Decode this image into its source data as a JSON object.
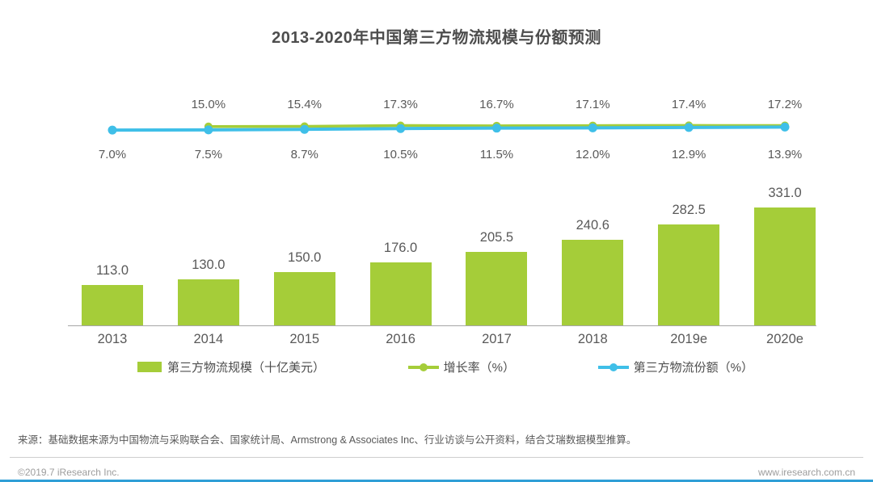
{
  "title": "2013-2020年中国第三方物流规模与份额预测",
  "colors": {
    "bar_green": "#a5cd39",
    "line_green": "#a5cd39",
    "line_blue": "#3fbfe8",
    "accent_bottom_bar": "#2f9fd6",
    "title_text": "#4d4d4d",
    "label_text": "#595959",
    "axis_gray": "#a6a6a6"
  },
  "chart_data": {
    "type": "bar",
    "title": "2013-2020年中国第三方物流规模与份额预测",
    "categories": [
      "2013",
      "2014",
      "2015",
      "2016",
      "2017",
      "2018",
      "2019e",
      "2020e"
    ],
    "series": [
      {
        "name": "第三方物流规模（十亿美元）",
        "type": "bar",
        "color": "#a5cd39",
        "values": [
          113.0,
          130.0,
          150.0,
          176.0,
          205.5,
          240.6,
          282.5,
          331.0
        ]
      },
      {
        "name": "增长率（%）",
        "type": "line",
        "color": "#a5cd39",
        "values": [
          null,
          15.0,
          15.4,
          17.3,
          16.7,
          17.1,
          17.4,
          17.2
        ]
      },
      {
        "name": "第三方物流份额（%）",
        "type": "line",
        "color": "#3fbfe8",
        "values": [
          7.0,
          7.5,
          8.7,
          10.5,
          11.5,
          12.0,
          12.9,
          13.9
        ]
      }
    ],
    "ylabel": "",
    "xlabel": "",
    "grid": false,
    "legend_position": "bottom",
    "bar_axis_range": [
      0,
      331
    ],
    "percent_axis_visible": false
  },
  "legend": {
    "scale_label": "第三方物流规模（十亿美元）",
    "growth_label": "增长率（%）",
    "share_label": "第三方物流份额（%）"
  },
  "source": "来源：基础数据来源为中国物流与采购联合会、国家统计局、Armstrong & Associates Inc、行业访谈与公开资料，结合艾瑞数据模型推算。",
  "footer": {
    "copyright": "©2019.7 iResearch Inc.",
    "website": "www.iresearch.com.cn"
  }
}
